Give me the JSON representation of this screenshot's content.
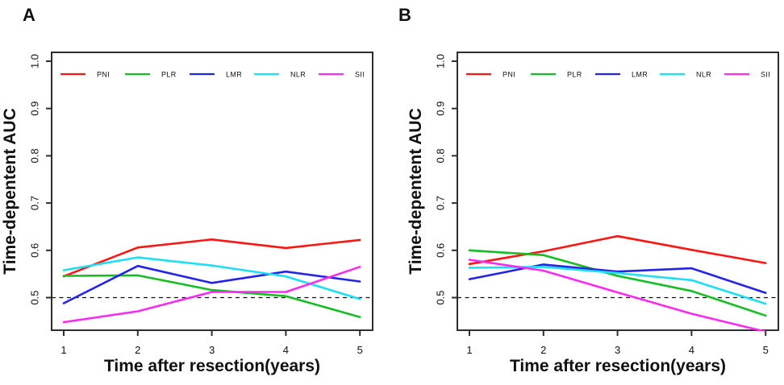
{
  "figure": {
    "panel_count": 2,
    "background": "#ffffff"
  },
  "chart_data": [
    {
      "type": "line",
      "panel_label": "A",
      "xlabel": "Time after resection(years)",
      "ylabel": "Time-depentent AUC",
      "x": [
        1,
        2,
        3,
        4,
        5
      ],
      "xticks": [
        "1",
        "2",
        "3",
        "4",
        "5"
      ],
      "yticks": [
        "0.5",
        "0.6",
        "0.7",
        "0.8",
        "0.9",
        "1.0"
      ],
      "xlim": [
        0.84,
        5.17
      ],
      "ylim": [
        0.43,
        1.02
      ],
      "grid": false,
      "reference_line_y": 0.5,
      "reference_line_style": "dashed",
      "legend_position": "top-inside-horizontal",
      "series": [
        {
          "name": "PNI",
          "color": "#fb1612",
          "values": [
            0.545,
            0.606,
            0.623,
            0.605,
            0.622
          ]
        },
        {
          "name": "PLR",
          "color": "#16bd24",
          "values": [
            0.546,
            0.547,
            0.516,
            0.503,
            0.459
          ]
        },
        {
          "name": "LMR",
          "color": "#2424e8",
          "values": [
            0.488,
            0.567,
            0.531,
            0.555,
            0.534
          ]
        },
        {
          "name": "NLR",
          "color": "#1cdff5",
          "values": [
            0.558,
            0.585,
            0.568,
            0.545,
            0.497
          ]
        },
        {
          "name": "SII",
          "color": "#f92bf0",
          "values": [
            0.448,
            0.471,
            0.512,
            0.512,
            0.565
          ]
        }
      ]
    },
    {
      "type": "line",
      "panel_label": "B",
      "xlabel": "Time after resection(years)",
      "ylabel": "Time-depentent AUC",
      "x": [
        1,
        2,
        3,
        4,
        5
      ],
      "xticks": [
        "1",
        "2",
        "3",
        "4",
        "5"
      ],
      "yticks": [
        "0.5",
        "0.6",
        "0.7",
        "0.8",
        "0.9",
        "1.0"
      ],
      "xlim": [
        0.84,
        5.17
      ],
      "ylim": [
        0.43,
        1.02
      ],
      "grid": false,
      "reference_line_y": 0.5,
      "reference_line_style": "dashed",
      "legend_position": "top-inside-horizontal",
      "series": [
        {
          "name": "PNI",
          "color": "#fb1612",
          "values": [
            0.571,
            0.598,
            0.63,
            0.601,
            0.573
          ]
        },
        {
          "name": "PLR",
          "color": "#16bd24",
          "values": [
            0.6,
            0.59,
            0.546,
            0.514,
            0.462
          ]
        },
        {
          "name": "LMR",
          "color": "#2424e8",
          "values": [
            0.539,
            0.57,
            0.555,
            0.562,
            0.51
          ]
        },
        {
          "name": "NLR",
          "color": "#1cdff5",
          "values": [
            0.563,
            0.565,
            0.552,
            0.537,
            0.487
          ]
        },
        {
          "name": "SII",
          "color": "#f92bf0",
          "values": [
            0.58,
            0.557,
            0.511,
            0.466,
            0.428
          ]
        }
      ]
    }
  ]
}
